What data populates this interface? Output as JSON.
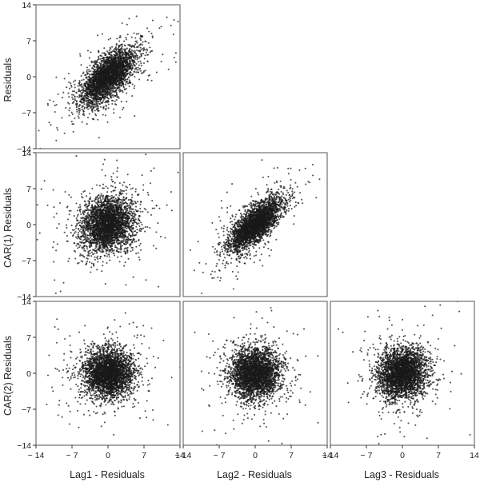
{
  "chart_data": {
    "type": "scatter",
    "layout": "lower-triangular scatterplot matrix, 3 rows x 3 columns",
    "tick_values": [
      -14,
      -7,
      0,
      7,
      14
    ],
    "xlim": [
      -14,
      14
    ],
    "ylim": [
      -14,
      14
    ],
    "row_labels": [
      "Residuals",
      "CAR(1)  Residuals",
      "CAR(2)  Residuals"
    ],
    "col_labels": [
      "Lag1 - Residuals",
      "Lag2 - Residuals",
      "Lag3 - Residuals"
    ],
    "panels": [
      {
        "row": 0,
        "col": 0,
        "points": 3200,
        "center": [
          0,
          0
        ],
        "sd_x": 2.7,
        "sd_y": 2.7,
        "correlation": 0.65
      },
      {
        "row": 1,
        "col": 0,
        "points": 3200,
        "center": [
          0,
          0
        ],
        "sd_x": 2.6,
        "sd_y": 2.6,
        "correlation": 0.15
      },
      {
        "row": 1,
        "col": 1,
        "points": 3200,
        "center": [
          0,
          0
        ],
        "sd_x": 2.6,
        "sd_y": 2.6,
        "correlation": 0.75
      },
      {
        "row": 2,
        "col": 0,
        "points": 3200,
        "center": [
          0,
          0
        ],
        "sd_x": 2.4,
        "sd_y": 2.4,
        "correlation": 0.0
      },
      {
        "row": 2,
        "col": 1,
        "points": 3200,
        "center": [
          0,
          0
        ],
        "sd_x": 2.4,
        "sd_y": 2.4,
        "correlation": 0.05
      },
      {
        "row": 2,
        "col": 2,
        "points": 3200,
        "center": [
          0,
          0
        ],
        "sd_x": 2.4,
        "sd_y": 2.4,
        "correlation": 0.1
      }
    ],
    "point_color": "#1a1a1a",
    "grid": false,
    "legend": "none"
  }
}
